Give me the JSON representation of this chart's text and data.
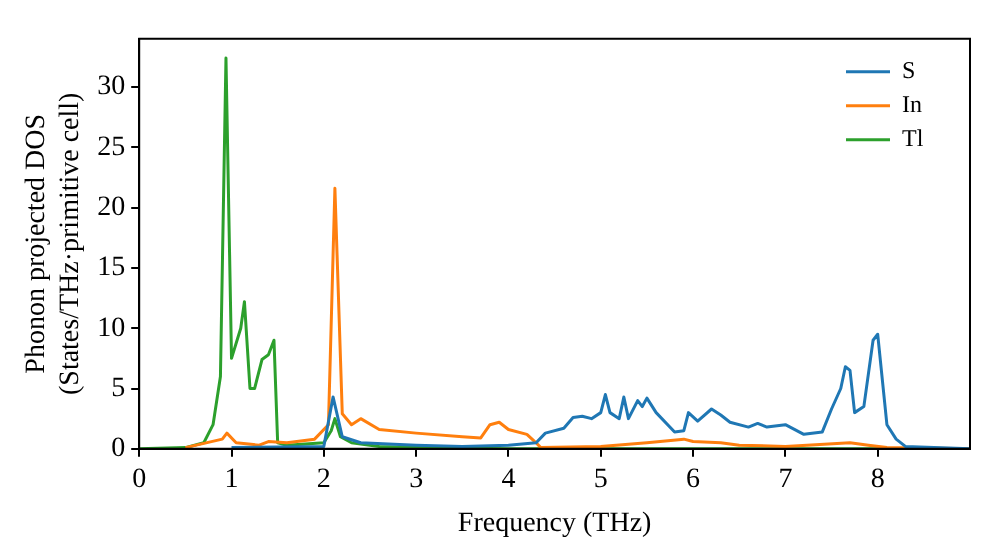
{
  "chart_data": {
    "type": "line",
    "xlabel": "Frequency (THz)",
    "ylabel": "Phonon projected DOS\n(States/THz·primitive cell)",
    "xlim": [
      0,
      9
    ],
    "ylim": [
      0,
      34
    ],
    "xticks": [
      0,
      1,
      2,
      3,
      4,
      5,
      6,
      7,
      8
    ],
    "yticks": [
      0,
      5,
      10,
      15,
      20,
      25,
      30
    ],
    "legend": "top right",
    "grid": false,
    "marker": "none",
    "line_style": "solid",
    "series": [
      {
        "name": "S",
        "color": "#1f77b4",
        "x": [
          1,
          2.0,
          2.1,
          2.2,
          2.4,
          3,
          3.5,
          4,
          4.3,
          4.4,
          4.6,
          4.7,
          4.8,
          4.9,
          5.0,
          5.05,
          5.1,
          5.2,
          5.25,
          5.3,
          5.4,
          5.45,
          5.5,
          5.6,
          5.8,
          5.9,
          5.95,
          6.05,
          6.2,
          6.3,
          6.4,
          6.6,
          6.7,
          6.8,
          7.0,
          7.2,
          7.4,
          7.5,
          7.6,
          7.65,
          7.7,
          7.75,
          7.85,
          7.95,
          8.0,
          8.1,
          8.2,
          8.3,
          9
        ],
        "values": [
          0.1,
          0.2,
          4.3,
          1,
          0.5,
          0.3,
          0.2,
          0.3,
          0.5,
          1.3,
          1.7,
          2.6,
          2.7,
          2.5,
          3,
          4.5,
          3,
          2.5,
          4.3,
          2.5,
          4,
          3.5,
          4.2,
          3,
          1.4,
          1.5,
          3,
          2.3,
          3.3,
          2.8,
          2.2,
          1.8,
          2.1,
          1.8,
          2.0,
          1.2,
          1.4,
          3.3,
          5,
          6.8,
          6.5,
          3,
          3.5,
          9.0,
          9.5,
          2,
          0.8,
          0.2,
          0
        ]
      },
      {
        "name": "In",
        "color": "#ff7f0e",
        "x": [
          0.5,
          0.9,
          0.95,
          1.05,
          1.3,
          1.4,
          1.6,
          1.9,
          2.05,
          2.12,
          2.2,
          2.3,
          2.4,
          2.6,
          3,
          3.5,
          3.7,
          3.8,
          3.9,
          4,
          4.2,
          4.3,
          4.35,
          5,
          5.5,
          5.9,
          6.0,
          6.3,
          6.5,
          7,
          7.7,
          7.9,
          8.1,
          9
        ],
        "values": [
          0.1,
          0.8,
          1.3,
          0.5,
          0.3,
          0.6,
          0.5,
          0.8,
          2.0,
          21.6,
          2.9,
          2,
          2.5,
          1.6,
          1.3,
          1.0,
          0.9,
          2.0,
          2.2,
          1.6,
          1.2,
          0.5,
          0.1,
          0.2,
          0.5,
          0.8,
          0.6,
          0.5,
          0.3,
          0.2,
          0.5,
          0.3,
          0.1,
          0
        ]
      },
      {
        "name": "Tl",
        "color": "#2ca02c",
        "x": [
          0,
          0.5,
          0.7,
          0.8,
          0.88,
          0.94,
          1.0,
          1.1,
          1.14,
          1.2,
          1.25,
          1.33,
          1.4,
          1.46,
          1.5,
          1.6,
          2.0,
          2.08,
          2.12,
          2.18,
          2.3,
          2.6,
          3,
          4,
          9
        ],
        "values": [
          0,
          0.1,
          0.5,
          2,
          6,
          32.4,
          7.5,
          10,
          12.2,
          5,
          5,
          7.4,
          7.8,
          9,
          0.5,
          0.3,
          0.5,
          1.5,
          2.5,
          1,
          0.5,
          0.2,
          0.1,
          0,
          0
        ]
      }
    ]
  }
}
